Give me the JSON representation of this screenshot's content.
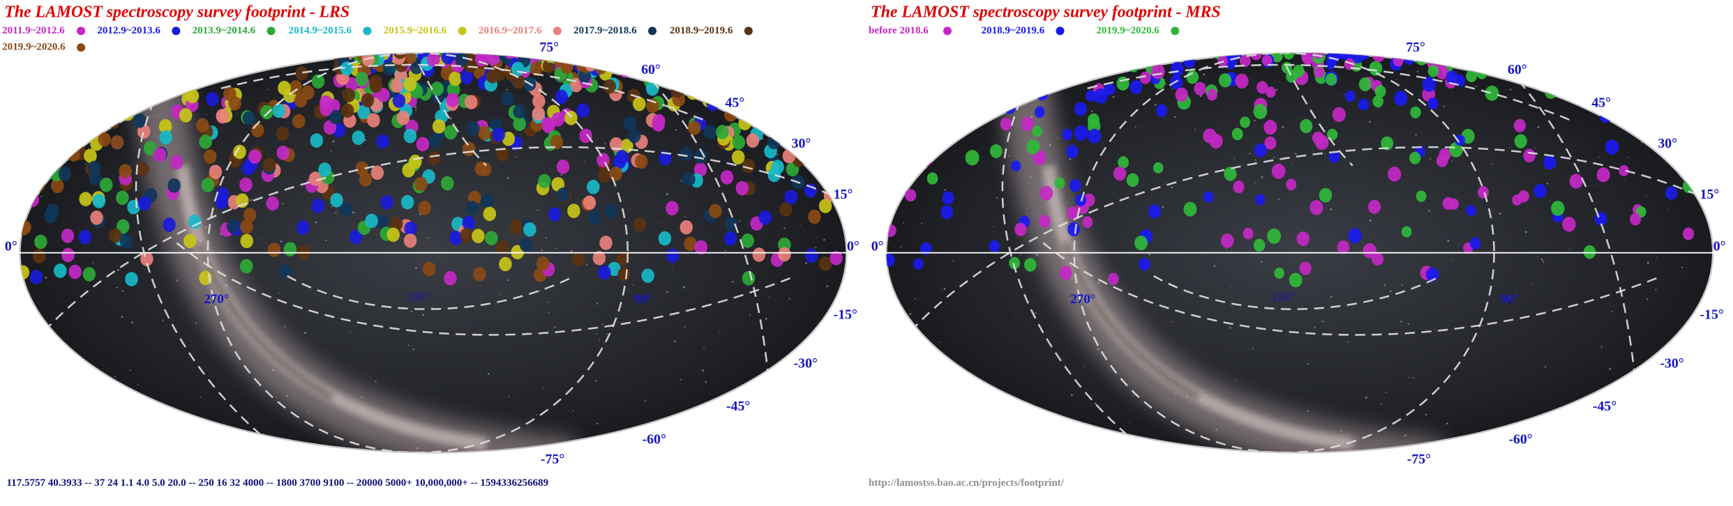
{
  "panels": [
    {
      "title": "The LAMOST spectroscopy survey footprint - LRS",
      "legend": [
        {
          "label": "2011.9~2012.6",
          "color": "#c428c4"
        },
        {
          "label": "2012.9~2013.6",
          "color": "#1a1adc"
        },
        {
          "label": "2013.9~2014.6",
          "color": "#2ea836"
        },
        {
          "label": "2014.9~2015.6",
          "color": "#18b8c8"
        },
        {
          "label": "2015.9~2016.6",
          "color": "#c8c418"
        },
        {
          "label": "2016.9~2017.6",
          "color": "#e8807a"
        },
        {
          "label": "2017.9~2018.6",
          "color": "#10365a"
        },
        {
          "label": "2018.9~2019.6",
          "color": "#5a3210"
        },
        {
          "label": "2019.9~2020.6",
          "color": "#8a4a14"
        }
      ],
      "lat_labels": [
        "75°",
        "60°",
        "45°",
        "30°",
        "15°",
        "0°",
        "0°",
        "-15°",
        "-30°",
        "-45°",
        "-60°",
        "-75°"
      ],
      "lon_labels": [
        "270°",
        "180°",
        "90°"
      ],
      "footer": "117.5757 40.3933 -- 37 24 1.1 4.0 5.0 20.0 -- 250 16 32 4000 -- 1800 3700 9100 -- 20000  5000+ 10,000,000+ --  1594336256689"
    },
    {
      "title": "The LAMOST spectroscopy survey footprint - MRS",
      "legend": [
        {
          "label": "before 2018.6",
          "color": "#c428c4"
        },
        {
          "label": "2018.9~2019.6",
          "color": "#1a1af0"
        },
        {
          "label": "2019.9~2020.6",
          "color": "#30b83a"
        }
      ],
      "lat_labels": [
        "75°",
        "60°",
        "45°",
        "30°",
        "15°",
        "0°",
        "0°",
        "-15°",
        "-30°",
        "-45°",
        "-60°",
        "-75°"
      ],
      "lon_labels": [
        "270°",
        "180°",
        "90°"
      ],
      "footer": "http://lamostss.bao.ac.cn/projects/footprint/"
    }
  ]
}
